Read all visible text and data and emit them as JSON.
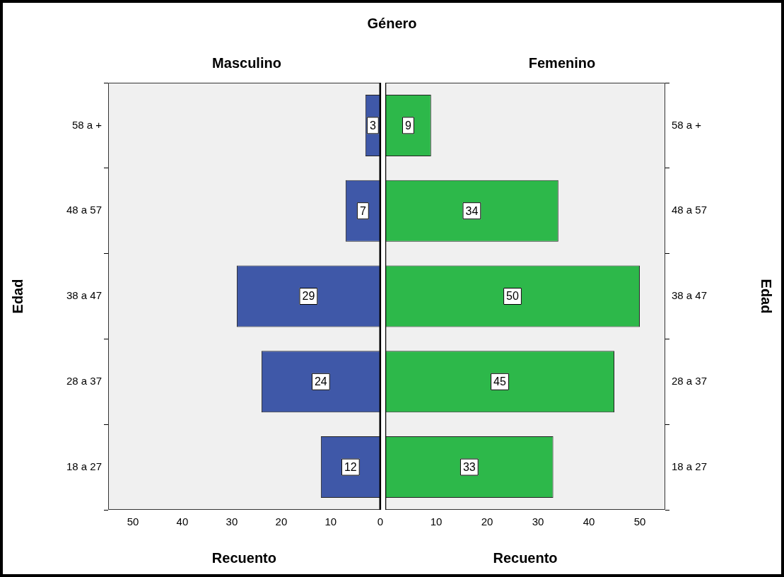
{
  "chart_data": [
    {
      "type": "bar",
      "orientation": "horizontal",
      "title": "Género",
      "subtitle": "Masculino",
      "xlabel": "Recuento",
      "ylabel": "Edad",
      "categories": [
        "58 a +",
        "48 a 57",
        "38 a 47",
        "28 a 37",
        "18 a 27"
      ],
      "values": [
        3,
        7,
        29,
        24,
        12
      ],
      "color": "#3f58a8",
      "xlim": [
        55,
        0
      ],
      "xticks": [
        50,
        40,
        30,
        20,
        10,
        0
      ],
      "data_labels": true,
      "grid": false,
      "legend": false
    },
    {
      "type": "bar",
      "orientation": "horizontal",
      "subtitle": "Femenino",
      "xlabel": "Recuento",
      "ylabel": "Edad",
      "categories": [
        "58 a +",
        "48 a 57",
        "38 a 47",
        "28 a 37",
        "18 a 27"
      ],
      "values": [
        9,
        34,
        50,
        45,
        33
      ],
      "color": "#2db84a",
      "xlim": [
        0,
        55
      ],
      "xticks": [
        10,
        20,
        30,
        40,
        50
      ],
      "data_labels": true,
      "grid": false,
      "legend": false
    }
  ]
}
